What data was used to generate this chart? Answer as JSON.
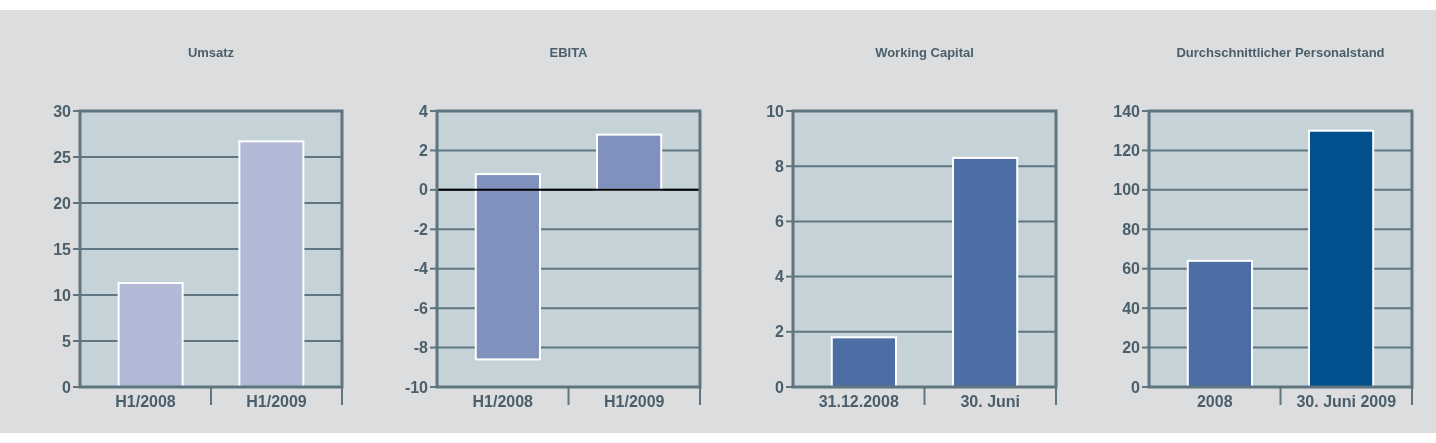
{
  "chart_data": [
    {
      "type": "bar",
      "title": "Umsatz",
      "categories": [
        "H1/2008",
        "H1/2009"
      ],
      "values": [
        11.3,
        26.7
      ],
      "color": "#b0b9d6",
      "ylim": [
        0,
        30
      ],
      "yticks": [
        0,
        5,
        10,
        15,
        20,
        25,
        30
      ],
      "grid": "y"
    },
    {
      "type": "bar",
      "title": "EBITA",
      "categories": [
        "H1/2008",
        "H1/2009"
      ],
      "values": [
        9.4,
        2.8
      ],
      "base": [
        -8.6,
        0
      ],
      "color": "#8091bd",
      "ylim": [
        -10,
        4
      ],
      "yticks": [
        -10,
        -8,
        -6,
        -4,
        -2,
        0,
        2,
        4
      ],
      "grid": "y",
      "ref_lines": [
        {
          "axis": "y",
          "value": 0,
          "color": "#000000"
        }
      ]
    },
    {
      "type": "bar",
      "title": "Working Capital",
      "categories": [
        "31.12.2008",
        "30. Juni"
      ],
      "values": [
        1.8,
        8.3
      ],
      "color": "#4c6ea4",
      "ylim": [
        0,
        10
      ],
      "yticks": [
        0,
        2,
        4,
        6,
        8,
        10
      ],
      "grid": "y"
    },
    {
      "type": "bar",
      "title": "Durchschnittlicher Personalstand",
      "categories": [
        "2008",
        "30. Juni 2009"
      ],
      "values": [
        64,
        130
      ],
      "colors": [
        "#4c6ea4",
        "#02508e"
      ],
      "ylim": [
        0,
        140
      ],
      "yticks": [
        0,
        20,
        40,
        60,
        80,
        100,
        120,
        140
      ],
      "grid": "y"
    }
  ]
}
